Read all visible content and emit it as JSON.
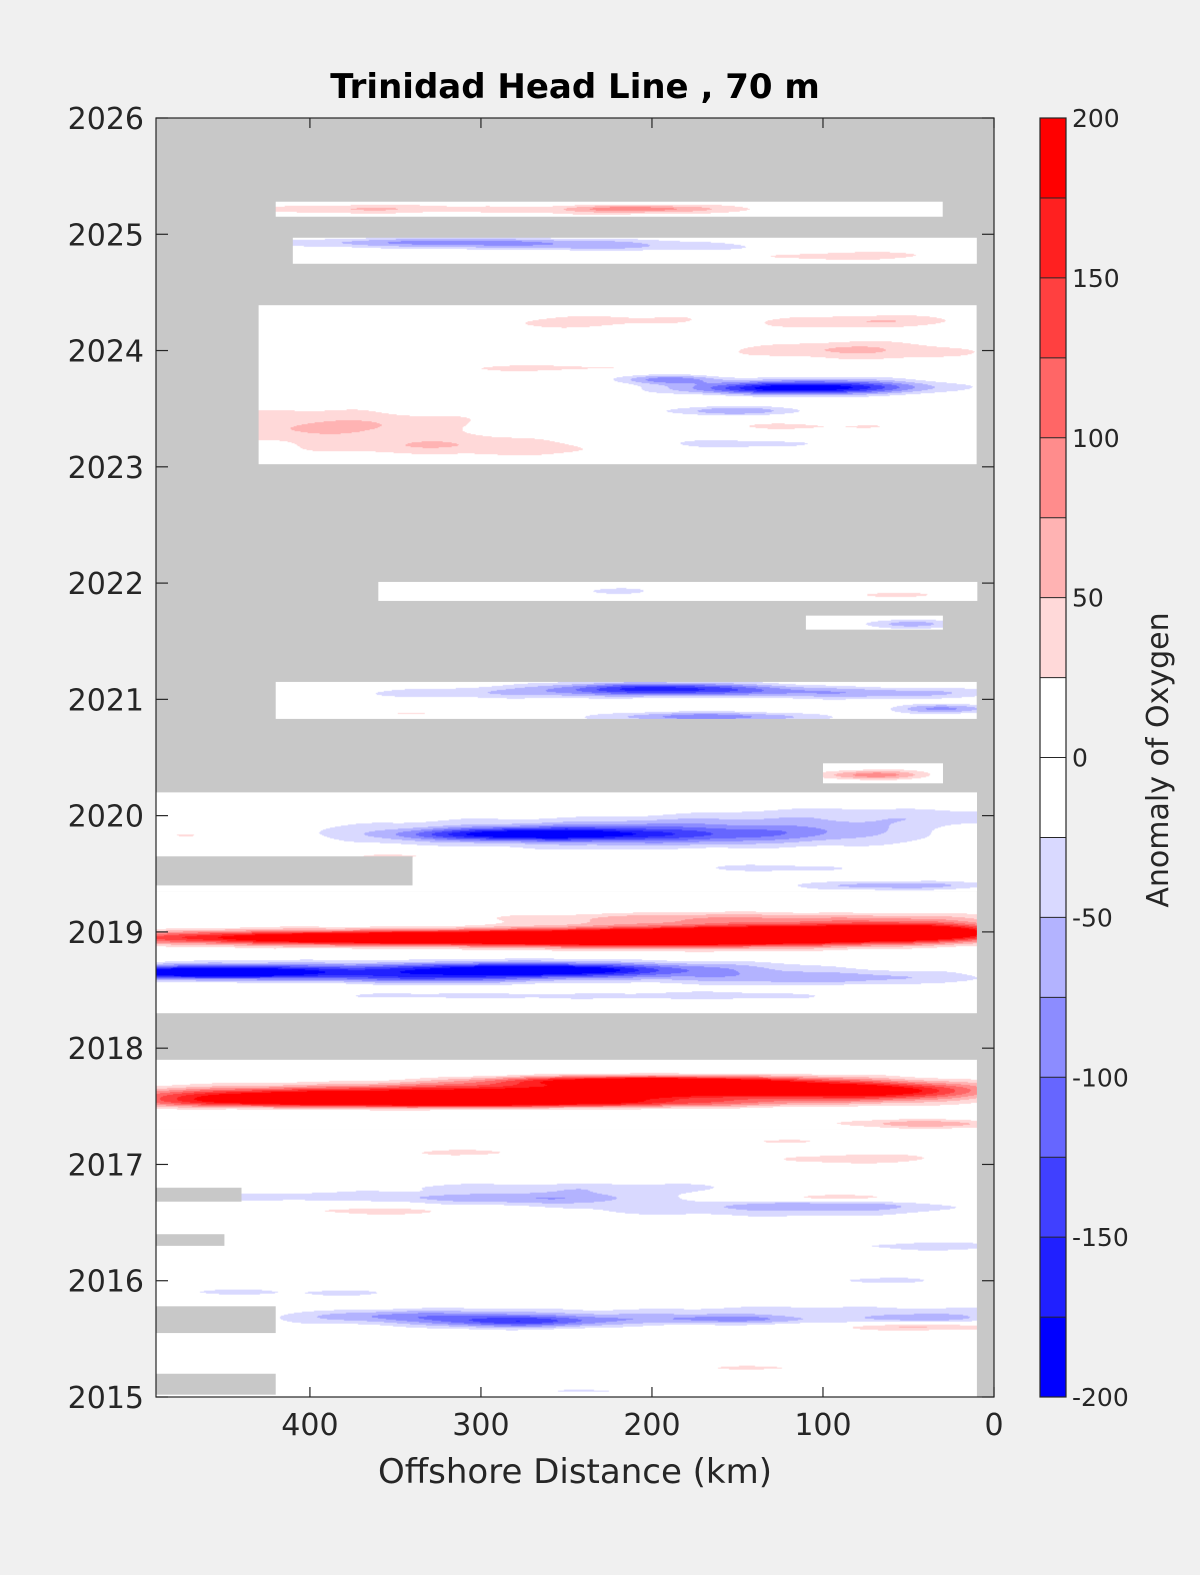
{
  "chart_data": {
    "type": "heatmap",
    "title": "Trinidad Head Line , 70 m",
    "xlabel": "Offshore Distance (km)",
    "ylabel": "",
    "xlim": [
      490,
      0
    ],
    "x_reversed": true,
    "ylim": [
      2015,
      2026
    ],
    "x_ticks": [
      400,
      300,
      200,
      100,
      0
    ],
    "y_ticks": [
      2015,
      2016,
      2017,
      2018,
      2019,
      2020,
      2021,
      2022,
      2023,
      2024,
      2025,
      2026
    ],
    "colorbar": {
      "label": "Anomaly of Oxygen",
      "range": [
        -200,
        200
      ],
      "ticks": [
        -200,
        -150,
        -100,
        -50,
        0,
        50,
        100,
        150,
        200
      ],
      "levels": [
        {
          "from": -200,
          "to": -175,
          "color": "#0000ff"
        },
        {
          "from": -175,
          "to": -150,
          "color": "#2020ff"
        },
        {
          "from": -150,
          "to": -125,
          "color": "#4040ff"
        },
        {
          "from": -125,
          "to": -100,
          "color": "#6666ff"
        },
        {
          "from": -100,
          "to": -75,
          "color": "#8c8cff"
        },
        {
          "from": -75,
          "to": -50,
          "color": "#b3b3ff"
        },
        {
          "from": -50,
          "to": -25,
          "color": "#d9d9ff"
        },
        {
          "from": -25,
          "to": 0,
          "color": "#ffffff"
        },
        {
          "from": 0,
          "to": 25,
          "color": "#ffffff"
        },
        {
          "from": 25,
          "to": 50,
          "color": "#ffd9d9"
        },
        {
          "from": 50,
          "to": 75,
          "color": "#ffb3b3"
        },
        {
          "from": 75,
          "to": 100,
          "color": "#ff8c8c"
        },
        {
          "from": 100,
          "to": 125,
          "color": "#ff6666"
        },
        {
          "from": 125,
          "to": 150,
          "color": "#ff4040"
        },
        {
          "from": 150,
          "to": 175,
          "color": "#ff2020"
        },
        {
          "from": 175,
          "to": 200,
          "color": "#ff0000"
        }
      ]
    },
    "missing_color": "#c8c8c8",
    "data_rows": [
      {
        "t0": 2025.15,
        "t1": 2025.28,
        "x_far": 420,
        "x_near": 30,
        "blobs": [
          [
            380,
            2025.22,
            60,
            0.04,
            40
          ],
          [
            220,
            2025.21,
            140,
            0.05,
            35
          ],
          [
            210,
            2025.22,
            40,
            0.03,
            60
          ]
        ]
      },
      {
        "t0": 2024.75,
        "t1": 2024.97,
        "x_far": 410,
        "x_near": 10,
        "blobs": [
          [
            310,
            2024.93,
            100,
            0.04,
            -80
          ],
          [
            220,
            2024.88,
            120,
            0.05,
            -45
          ],
          [
            90,
            2024.82,
            70,
            0.05,
            40
          ],
          [
            260,
            2024.84,
            80,
            0.03,
            30
          ]
        ]
      },
      {
        "t0": 2023.02,
        "t1": 2024.39,
        "x_far": 430,
        "x_near": 10,
        "blobs": [
          [
            390,
            2023.35,
            90,
            0.15,
            55
          ],
          [
            300,
            2023.17,
            90,
            0.08,
            45
          ],
          [
            240,
            2024.25,
            110,
            0.09,
            30
          ],
          [
            80,
            2024.0,
            70,
            0.08,
            55
          ],
          [
            70,
            2024.25,
            60,
            0.06,
            45
          ],
          [
            120,
            2023.67,
            60,
            0.05,
            -140
          ],
          [
            95,
            2023.7,
            60,
            0.06,
            -100
          ],
          [
            190,
            2023.75,
            30,
            0.04,
            -90
          ],
          [
            150,
            2023.48,
            40,
            0.04,
            -70
          ],
          [
            160,
            2023.2,
            60,
            0.05,
            -40
          ],
          [
            120,
            2023.35,
            80,
            0.05,
            30
          ],
          [
            270,
            2023.85,
            90,
            0.04,
            30
          ]
        ]
      },
      {
        "t0": 2021.85,
        "t1": 2022.01,
        "x_far": 360,
        "x_near": 10,
        "blobs": [
          [
            220,
            2021.93,
            20,
            0.03,
            -40
          ],
          [
            60,
            2021.9,
            40,
            0.03,
            30
          ]
        ]
      },
      {
        "t0": 2021.6,
        "t1": 2021.72,
        "x_far": 110,
        "x_near": 30,
        "blobs": [
          [
            50,
            2021.65,
            30,
            0.04,
            -60
          ]
        ]
      },
      {
        "t0": 2020.83,
        "t1": 2021.15,
        "x_far": 420,
        "x_near": 10,
        "blobs": [
          [
            200,
            2021.1,
            60,
            0.05,
            -110
          ],
          [
            170,
            2021.07,
            90,
            0.05,
            -70
          ],
          [
            165,
            2020.85,
            60,
            0.04,
            -95
          ],
          [
            30,
            2020.92,
            30,
            0.04,
            -80
          ],
          [
            300,
            2021.05,
            80,
            0.05,
            -40
          ],
          [
            60,
            2021.05,
            80,
            0.05,
            -50
          ],
          [
            350,
            2020.88,
            40,
            0.03,
            30
          ]
        ]
      },
      {
        "t0": 2020.28,
        "t1": 2020.45,
        "x_far": 100,
        "x_near": 30,
        "blobs": [
          [
            70,
            2020.35,
            30,
            0.04,
            90
          ]
        ]
      },
      {
        "t0": 2019.35,
        "t1": 2020.2,
        "x_far": 490,
        "x_near": 10,
        "blobs": [
          [
            270,
            2019.84,
            70,
            0.05,
            -150
          ],
          [
            230,
            2019.85,
            140,
            0.12,
            -80
          ],
          [
            140,
            2019.85,
            100,
            0.1,
            -50
          ],
          [
            60,
            2020.0,
            110,
            0.08,
            -40
          ],
          [
            470,
            2019.83,
            30,
            0.03,
            30
          ],
          [
            330,
            2019.65,
            70,
            0.04,
            30
          ],
          [
            60,
            2019.4,
            60,
            0.04,
            -65
          ],
          [
            380,
            2020.1,
            80,
            0.04,
            25
          ],
          [
            130,
            2019.55,
            50,
            0.04,
            -40
          ]
        ]
      },
      {
        "t0": 2018.3,
        "t1": 2019.35,
        "x_far": 490,
        "x_near": 10,
        "blobs": [
          [
            390,
            2018.95,
            140,
            0.06,
            160
          ],
          [
            270,
            2018.95,
            160,
            0.06,
            180
          ],
          [
            180,
            2018.95,
            110,
            0.08,
            200
          ],
          [
            110,
            2019.0,
            100,
            0.08,
            175
          ],
          [
            40,
            2019.0,
            50,
            0.08,
            150
          ],
          [
            150,
            2019.12,
            150,
            0.05,
            60
          ],
          [
            460,
            2018.65,
            60,
            0.05,
            -150
          ],
          [
            430,
            2018.66,
            120,
            0.07,
            -110
          ],
          [
            270,
            2018.67,
            60,
            0.05,
            -140
          ],
          [
            250,
            2018.68,
            130,
            0.07,
            -100
          ],
          [
            330,
            2018.6,
            60,
            0.05,
            -80
          ],
          [
            110,
            2018.6,
            120,
            0.06,
            -60
          ],
          [
            150,
            2018.45,
            60,
            0.04,
            -40
          ],
          [
            300,
            2018.45,
            100,
            0.04,
            -35
          ]
        ]
      },
      {
        "t0": 2017.3,
        "t1": 2017.9,
        "x_far": 490,
        "x_near": 10,
        "blobs": [
          [
            440,
            2017.58,
            80,
            0.07,
            140
          ],
          [
            340,
            2017.6,
            110,
            0.08,
            140
          ],
          [
            220,
            2017.63,
            120,
            0.08,
            140
          ],
          [
            130,
            2017.66,
            90,
            0.08,
            150
          ],
          [
            60,
            2017.62,
            60,
            0.08,
            120
          ],
          [
            210,
            2017.72,
            80,
            0.04,
            175
          ],
          [
            235,
            2017.6,
            40,
            0.03,
            110
          ],
          [
            300,
            2017.53,
            150,
            0.04,
            175
          ],
          [
            40,
            2017.35,
            50,
            0.04,
            70
          ]
        ]
      },
      {
        "t0": 2015.0,
        "t1": 2017.3,
        "x_far": 490,
        "x_near": 10,
        "blobs": [
          [
            240,
            2016.7,
            90,
            0.06,
            -70
          ],
          [
            250,
            2016.8,
            120,
            0.05,
            -40
          ],
          [
            400,
            2016.72,
            140,
            0.04,
            -40
          ],
          [
            100,
            2016.65,
            60,
            0.04,
            -60
          ],
          [
            130,
            2016.6,
            120,
            0.06,
            -40
          ],
          [
            360,
            2016.6,
            60,
            0.04,
            40
          ],
          [
            170,
            2016.7,
            80,
            0.05,
            30
          ],
          [
            90,
            2016.72,
            40,
            0.03,
            35
          ],
          [
            280,
            2015.65,
            50,
            0.05,
            -95
          ],
          [
            280,
            2015.68,
            130,
            0.08,
            -55
          ],
          [
            150,
            2015.67,
            50,
            0.04,
            -70
          ],
          [
            350,
            2015.7,
            60,
            0.05,
            -40
          ],
          [
            420,
            2015.9,
            120,
            0.05,
            -30
          ],
          [
            40,
            2015.68,
            40,
            0.04,
            -65
          ],
          [
            70,
            2015.75,
            120,
            0.05,
            -30
          ],
          [
            40,
            2015.6,
            60,
            0.03,
            50
          ],
          [
            130,
            2015.25,
            60,
            0.03,
            30
          ],
          [
            40,
            2016.3,
            80,
            0.05,
            -35
          ],
          [
            60,
            2016.0,
            60,
            0.04,
            -30
          ],
          [
            230,
            2015.05,
            40,
            0.03,
            -30
          ],
          [
            80,
            2017.05,
            60,
            0.05,
            40
          ],
          [
            300,
            2017.1,
            70,
            0.04,
            30
          ],
          [
            130,
            2017.2,
            50,
            0.03,
            25
          ]
        ]
      }
    ],
    "missing_blocks": [
      {
        "t0": 2015.02,
        "t1": 2015.2,
        "x_far": 490,
        "x_near": 420
      },
      {
        "t0": 2015.55,
        "t1": 2015.78,
        "x_far": 490,
        "x_near": 420
      },
      {
        "t0": 2016.3,
        "t1": 2016.4,
        "x_far": 490,
        "x_near": 450
      },
      {
        "t0": 2016.68,
        "t1": 2016.8,
        "x_far": 490,
        "x_near": 440
      },
      {
        "t0": 2019.4,
        "t1": 2019.65,
        "x_far": 490,
        "x_near": 340
      },
      {
        "t0": 2015.0,
        "t1": 2019.35,
        "x_far": 10,
        "x_near": 0
      }
    ]
  }
}
